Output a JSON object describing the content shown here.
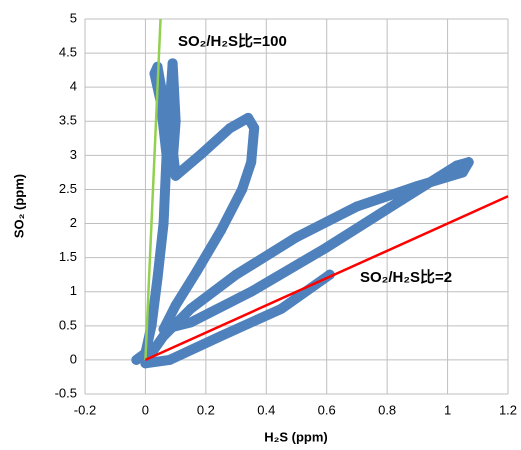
{
  "chart_data": {
    "type": "scatter",
    "x_label": "H₂S (ppm)",
    "y_label": "SO₂ (ppm)",
    "xlim": [
      -0.2,
      1.2
    ],
    "ylim": [
      -0.5,
      5
    ],
    "xticks": [
      -0.2,
      0,
      0.2,
      0.4,
      0.6,
      0.8,
      1,
      1.2
    ],
    "yticks": [
      -0.5,
      0,
      0.5,
      1,
      1.5,
      2,
      2.5,
      3,
      3.5,
      4,
      4.5,
      5
    ],
    "grid": true,
    "series": [
      {
        "color": "#4f81bd",
        "x": [
          -0.03,
          0.0,
          0.02,
          0.04,
          0.06,
          0.07,
          0.05,
          0.03,
          0.04,
          0.06,
          0.07,
          0.08,
          0.09,
          0.1,
          0.09,
          0.09,
          0.1,
          0.18,
          0.28,
          0.34,
          0.36,
          0.35,
          0.32,
          0.25,
          0.17,
          0.1,
          0.06,
          0.15,
          0.35,
          0.6,
          0.85,
          1.03,
          1.07,
          1.05,
          0.9,
          0.7,
          0.5,
          0.3,
          0.15,
          0.06,
          0.02,
          0.0,
          0.08,
          0.25,
          0.45,
          0.61
        ],
        "values": [
          0.0,
          0.1,
          0.5,
          1.2,
          2.0,
          3.0,
          3.8,
          4.2,
          4.3,
          3.8,
          3.3,
          3.7,
          4.35,
          3.5,
          2.9,
          3.1,
          2.7,
          3.0,
          3.4,
          3.55,
          3.4,
          2.9,
          2.5,
          1.9,
          1.3,
          0.8,
          0.45,
          0.55,
          1.0,
          1.65,
          2.35,
          2.85,
          2.9,
          2.75,
          2.55,
          2.25,
          1.8,
          1.25,
          0.75,
          0.35,
          0.1,
          -0.05,
          0.0,
          0.35,
          0.75,
          1.25
        ]
      }
    ],
    "reference_lines": [
      {
        "text": "SO₂/H₂S比=100",
        "slope": 100,
        "color": "#92d050"
      },
      {
        "text": "SO₂/H₂S比=2",
        "slope": 2,
        "color": "#ff0000"
      }
    ]
  }
}
